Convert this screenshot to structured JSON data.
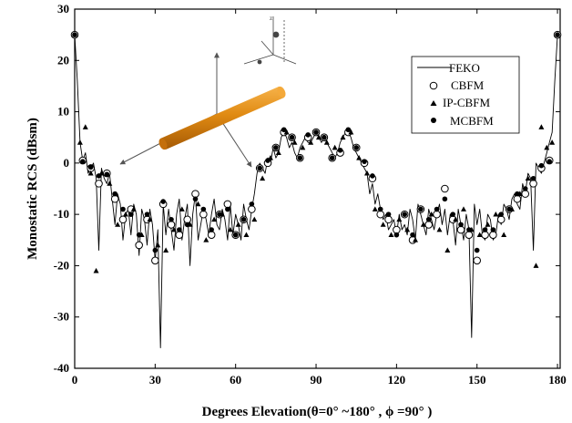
{
  "chart_data": {
    "type": "line",
    "xlabel": "Degrees Elevation(θ=0°  ~180°  , ϕ =90°  )",
    "ylabel": "Monostatic RCS (dBsm)",
    "xlim": [
      0,
      181
    ],
    "ylim": [
      -40,
      30
    ],
    "xticks": [
      0,
      30,
      60,
      90,
      120,
      150,
      180
    ],
    "yticks": [
      -40,
      -30,
      -20,
      -10,
      0,
      10,
      20,
      30
    ],
    "grid": false,
    "legend_position": "top-right",
    "legend": [
      "FEKO",
      "CBFM",
      "IP-CBFM",
      "MCBFM"
    ],
    "series": [
      {
        "name": "FEKO",
        "style": "line",
        "x": [
          0,
          1,
          2,
          3,
          4,
          5,
          6,
          7,
          8,
          9,
          10,
          11,
          12,
          13,
          14,
          15,
          16,
          17,
          18,
          19,
          20,
          21,
          22,
          23,
          24,
          25,
          26,
          27,
          28,
          29,
          30,
          31,
          32,
          33,
          34,
          35,
          36,
          37,
          38,
          39,
          40,
          41,
          42,
          43,
          44,
          45,
          46,
          47,
          48,
          49,
          50,
          51,
          52,
          53,
          54,
          55,
          56,
          57,
          58,
          59,
          60,
          61,
          62,
          63,
          64,
          65,
          66,
          67,
          68,
          69,
          70,
          71,
          72,
          73,
          74,
          75,
          76,
          77,
          78,
          79,
          80,
          81,
          82,
          83,
          84,
          85,
          86,
          87,
          88,
          89,
          90,
          91,
          92,
          93,
          94,
          95,
          96,
          97,
          98,
          99,
          100,
          101,
          102,
          103,
          104,
          105,
          106,
          107,
          108,
          109,
          110,
          111,
          112,
          113,
          114,
          115,
          116,
          117,
          118,
          119,
          120,
          121,
          122,
          123,
          124,
          125,
          126,
          127,
          128,
          129,
          130,
          131,
          132,
          133,
          134,
          135,
          136,
          137,
          138,
          139,
          140,
          141,
          142,
          143,
          144,
          145,
          146,
          147,
          148,
          149,
          150,
          151,
          152,
          153,
          154,
          155,
          156,
          157,
          158,
          159,
          160,
          161,
          162,
          163,
          164,
          165,
          166,
          167,
          168,
          169,
          170,
          171,
          172,
          173,
          174,
          175,
          176,
          177,
          178,
          179,
          180
        ],
        "y": [
          25,
          16,
          4,
          0.5,
          2,
          -2,
          -1,
          0,
          -3,
          -17,
          -1,
          -3,
          -4,
          -2,
          -7,
          -12,
          -6,
          -8,
          -15,
          -10,
          -9,
          -14,
          -8,
          -10,
          -18,
          -9,
          -11,
          -16,
          -9,
          -12,
          -19,
          -13,
          -36,
          -8,
          -14,
          -9,
          -13,
          -17,
          -10,
          -7,
          -15,
          -11,
          -8,
          -20,
          -10,
          -6,
          -15,
          -12,
          -9,
          -11,
          -14,
          -10,
          -7,
          -12,
          -13,
          -9,
          -11,
          -15,
          -8,
          -14,
          -10,
          -12,
          -15,
          -8,
          -11,
          -13,
          -9,
          -6,
          -2,
          0,
          -1,
          -2,
          1,
          0,
          3,
          1,
          2,
          5,
          6,
          5,
          3,
          4,
          2,
          1,
          3,
          4,
          5,
          4,
          4,
          5,
          6,
          5,
          4,
          5,
          4,
          3,
          2,
          1,
          2,
          4,
          5,
          6,
          6,
          5,
          3,
          2,
          1,
          0,
          -1,
          -2,
          -6,
          -4,
          -8,
          -6,
          -9,
          -11,
          -10,
          -13,
          -12,
          -11,
          -14,
          -10,
          -13,
          -12,
          -14,
          -9,
          -11,
          -15,
          -8,
          -10,
          -12,
          -14,
          -9,
          -11,
          -13,
          -10,
          -8,
          -12,
          -9,
          -14,
          -10,
          -11,
          -16,
          -9,
          -12,
          -15,
          -10,
          -13,
          -34,
          -8,
          -12,
          -9,
          -14,
          -15,
          -10,
          -11,
          -15,
          -14,
          -10,
          -12,
          -8,
          -9,
          -11,
          -7,
          -6,
          -8,
          -9,
          -4,
          -6,
          -2,
          -3,
          -17,
          0,
          -1,
          -2,
          0,
          2,
          4,
          6,
          16,
          25
        ]
      },
      {
        "name": "CBFM",
        "style": "open-circle",
        "x": [
          0,
          3,
          6,
          9,
          12,
          15,
          18,
          21,
          24,
          27,
          30,
          33,
          36,
          39,
          42,
          45,
          48,
          51,
          54,
          57,
          60,
          63,
          66,
          69,
          72,
          75,
          78,
          81,
          84,
          87,
          90,
          93,
          96,
          99,
          102,
          105,
          108,
          111,
          114,
          117,
          120,
          123,
          126,
          129,
          132,
          135,
          138,
          141,
          144,
          147,
          150,
          153,
          156,
          159,
          162,
          165,
          168,
          171,
          174,
          177,
          180
        ],
        "y": [
          25,
          0.5,
          -1,
          -4,
          -2,
          -7,
          -11,
          -9,
          -16,
          -11,
          -19,
          -8,
          -12,
          -14,
          -11,
          -6,
          -10,
          -14,
          -10,
          -8,
          -14,
          -11,
          -9,
          -1,
          0,
          3,
          6,
          5,
          1,
          5,
          6,
          5,
          1,
          2,
          6,
          3,
          0,
          -3,
          -10,
          -11,
          -13,
          -10,
          -15,
          -9,
          -12,
          -10,
          -5,
          -11,
          -13,
          -14,
          -19,
          -14,
          -14,
          -11,
          -9,
          -7,
          -6,
          -4,
          -1,
          0.5,
          25
        ]
      },
      {
        "name": "IP-CBFM",
        "style": "filled-triangle",
        "x": [
          0,
          2,
          4,
          6,
          8,
          10,
          13,
          16,
          19,
          22,
          25,
          28,
          31,
          34,
          37,
          40,
          43,
          46,
          49,
          52,
          55,
          58,
          61,
          64,
          67,
          70,
          73,
          76,
          79,
          82,
          85,
          88,
          91,
          94,
          97,
          100,
          103,
          106,
          109,
          112,
          115,
          118,
          121,
          124,
          127,
          130,
          133,
          136,
          139,
          142,
          145,
          148,
          151,
          154,
          157,
          160,
          163,
          166,
          169,
          172,
          174,
          176,
          178,
          180
        ],
        "y": [
          25,
          4,
          7,
          -2,
          -21,
          -2,
          -4,
          -12,
          -10,
          -9,
          -14,
          -11,
          -16,
          -17,
          -13,
          -9,
          -12,
          -8,
          -15,
          -11,
          -10,
          -13,
          -12,
          -14,
          -11,
          -3,
          1,
          2,
          6,
          4,
          3,
          4,
          5,
          4,
          3,
          5,
          6,
          1,
          -2,
          -9,
          -12,
          -14,
          -11,
          -13,
          -15,
          -12,
          -10,
          -13,
          -17,
          -11,
          -9,
          -13,
          -14,
          -12,
          -10,
          -14,
          -9,
          -6,
          -3,
          -20,
          7,
          3,
          4,
          25
        ]
      },
      {
        "name": "MCBFM",
        "style": "filled-circle",
        "x": [
          0,
          3,
          6,
          9,
          12,
          15,
          18,
          21,
          24,
          27,
          30,
          33,
          36,
          39,
          42,
          45,
          48,
          51,
          54,
          57,
          60,
          63,
          66,
          69,
          72,
          75,
          78,
          81,
          84,
          87,
          90,
          93,
          96,
          99,
          102,
          105,
          108,
          111,
          114,
          117,
          120,
          123,
          126,
          129,
          132,
          135,
          138,
          141,
          144,
          147,
          150,
          153,
          156,
          159,
          162,
          165,
          168,
          171,
          174,
          177,
          180
        ],
        "y": [
          25,
          0.3,
          -0.8,
          -2.5,
          -2.2,
          -6,
          -9,
          -10,
          -14,
          -10,
          -17,
          -7.5,
          -11,
          -13,
          -12,
          -7,
          -9,
          -13,
          -10,
          -9,
          -14,
          -11,
          -8,
          -1,
          0.5,
          3,
          6.5,
          5,
          1,
          5.5,
          6,
          5,
          1,
          2.5,
          6.5,
          3,
          0.3,
          -2.5,
          -9,
          -10,
          -14,
          -10,
          -14,
          -9,
          -11,
          -9,
          -7,
          -10,
          -12,
          -13,
          -17,
          -13,
          -13,
          -10,
          -9,
          -6,
          -5,
          -3,
          -0.5,
          0.3,
          25
        ]
      }
    ]
  }
}
